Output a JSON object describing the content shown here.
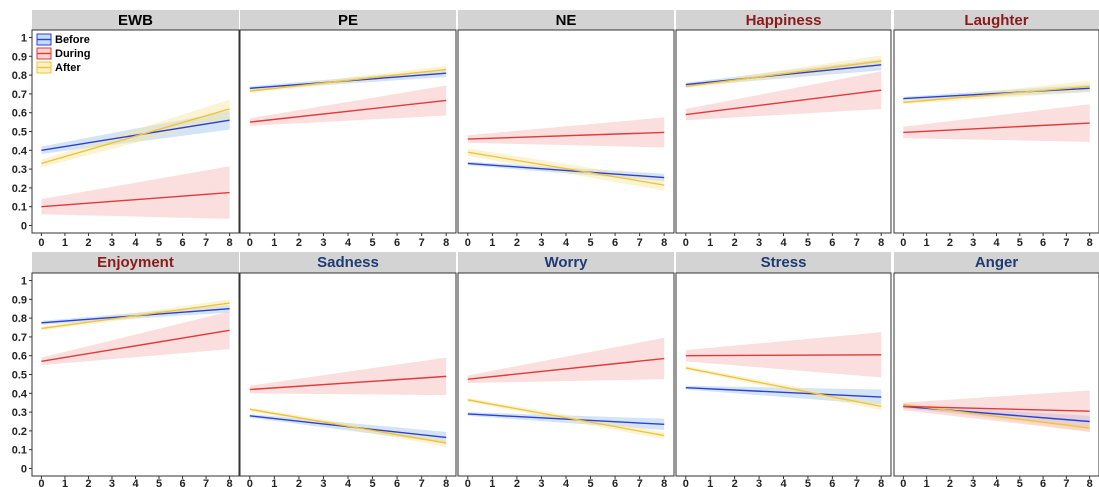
{
  "chart_data": {
    "type": "line",
    "layout": "facet-grid 2x5",
    "legend": {
      "placement": "top-left inside first panel",
      "entries": [
        {
          "name": "Before",
          "color": "#2c3fd6",
          "band_color": "#9ec4ea"
        },
        {
          "name": "During",
          "color": "#e03a3a",
          "band_color": "#f7b5b5"
        },
        {
          "name": "After",
          "color": "#f0c43a",
          "band_color": "#f7e7a0"
        }
      ]
    },
    "x_ticks": [
      "0",
      "1",
      "2",
      "3",
      "4",
      "5",
      "6",
      "7",
      "8"
    ],
    "y_ticks": [
      "0",
      "0.1",
      "0.2",
      "0.3",
      "0.4",
      "0.5",
      "0.6",
      "0.7",
      "0.8",
      "0.9",
      "1"
    ],
    "xlim": [
      -0.4,
      8.4
    ],
    "ylim": [
      -0.04,
      1.04
    ],
    "panels": [
      {
        "title": "EWB",
        "title_color": "#000000",
        "series": [
          {
            "name": "Before",
            "y0": 0.4,
            "y8": 0.56,
            "band0": 0.02,
            "band8": 0.05
          },
          {
            "name": "During",
            "y0": 0.1,
            "y8": 0.175,
            "band0": 0.04,
            "band8": 0.14
          },
          {
            "name": "After",
            "y0": 0.33,
            "y8": 0.62,
            "band0": 0.02,
            "band8": 0.05
          }
        ]
      },
      {
        "title": "PE",
        "title_color": "#000000",
        "series": [
          {
            "name": "Before",
            "y0": 0.73,
            "y8": 0.81,
            "band0": 0.01,
            "band8": 0.02
          },
          {
            "name": "During",
            "y0": 0.55,
            "y8": 0.665,
            "band0": 0.02,
            "band8": 0.08
          },
          {
            "name": "After",
            "y0": 0.715,
            "y8": 0.83,
            "band0": 0.01,
            "band8": 0.02
          }
        ]
      },
      {
        "title": "NE",
        "title_color": "#000000",
        "series": [
          {
            "name": "Before",
            "y0": 0.33,
            "y8": 0.255,
            "band0": 0.01,
            "band8": 0.02
          },
          {
            "name": "During",
            "y0": 0.46,
            "y8": 0.495,
            "band0": 0.02,
            "band8": 0.08
          },
          {
            "name": "After",
            "y0": 0.39,
            "y8": 0.215,
            "band0": 0.02,
            "band8": 0.03
          }
        ]
      },
      {
        "title": "Happiness",
        "title_color": "#8b1a1a",
        "series": [
          {
            "name": "Before",
            "y0": 0.75,
            "y8": 0.855,
            "band0": 0.01,
            "band8": 0.03
          },
          {
            "name": "During",
            "y0": 0.59,
            "y8": 0.72,
            "band0": 0.03,
            "band8": 0.1
          },
          {
            "name": "After",
            "y0": 0.74,
            "y8": 0.875,
            "band0": 0.01,
            "band8": 0.03
          }
        ]
      },
      {
        "title": "Laughter",
        "title_color": "#8b1a1a",
        "series": [
          {
            "name": "Before",
            "y0": 0.675,
            "y8": 0.73,
            "band0": 0.01,
            "band8": 0.02
          },
          {
            "name": "During",
            "y0": 0.495,
            "y8": 0.545,
            "band0": 0.03,
            "band8": 0.1
          },
          {
            "name": "After",
            "y0": 0.655,
            "y8": 0.74,
            "band0": 0.01,
            "band8": 0.03
          }
        ]
      },
      {
        "title": "Enjoyment",
        "title_color": "#8b1a1a",
        "series": [
          {
            "name": "Before",
            "y0": 0.775,
            "y8": 0.85,
            "band0": 0.01,
            "band8": 0.02
          },
          {
            "name": "During",
            "y0": 0.57,
            "y8": 0.735,
            "band0": 0.02,
            "band8": 0.1
          },
          {
            "name": "After",
            "y0": 0.745,
            "y8": 0.88,
            "band0": 0.01,
            "band8": 0.02
          }
        ]
      },
      {
        "title": "Sadness",
        "title_color": "#1f3b73",
        "series": [
          {
            "name": "Before",
            "y0": 0.28,
            "y8": 0.165,
            "band0": 0.01,
            "band8": 0.03
          },
          {
            "name": "During",
            "y0": 0.42,
            "y8": 0.49,
            "band0": 0.02,
            "band8": 0.1
          },
          {
            "name": "After",
            "y0": 0.315,
            "y8": 0.135,
            "band0": 0.01,
            "band8": 0.02
          }
        ]
      },
      {
        "title": "Worry",
        "title_color": "#1f3b73",
        "series": [
          {
            "name": "Before",
            "y0": 0.29,
            "y8": 0.235,
            "band0": 0.01,
            "band8": 0.03
          },
          {
            "name": "During",
            "y0": 0.475,
            "y8": 0.585,
            "band0": 0.02,
            "band8": 0.11
          },
          {
            "name": "After",
            "y0": 0.365,
            "y8": 0.175,
            "band0": 0.01,
            "band8": 0.02
          }
        ]
      },
      {
        "title": "Stress",
        "title_color": "#1f3b73",
        "series": [
          {
            "name": "Before",
            "y0": 0.43,
            "y8": 0.38,
            "band0": 0.01,
            "band8": 0.04
          },
          {
            "name": "During",
            "y0": 0.6,
            "y8": 0.605,
            "band0": 0.03,
            "band8": 0.12
          },
          {
            "name": "After",
            "y0": 0.535,
            "y8": 0.33,
            "band0": 0.01,
            "band8": 0.02
          }
        ]
      },
      {
        "title": "Anger",
        "title_color": "#1f3b73",
        "series": [
          {
            "name": "Before",
            "y0": 0.33,
            "y8": 0.25,
            "band0": 0.01,
            "band8": 0.03
          },
          {
            "name": "During",
            "y0": 0.33,
            "y8": 0.305,
            "band0": 0.02,
            "band8": 0.11
          },
          {
            "name": "After",
            "y0": 0.34,
            "y8": 0.215,
            "band0": 0.01,
            "band8": 0.02
          }
        ]
      }
    ]
  }
}
